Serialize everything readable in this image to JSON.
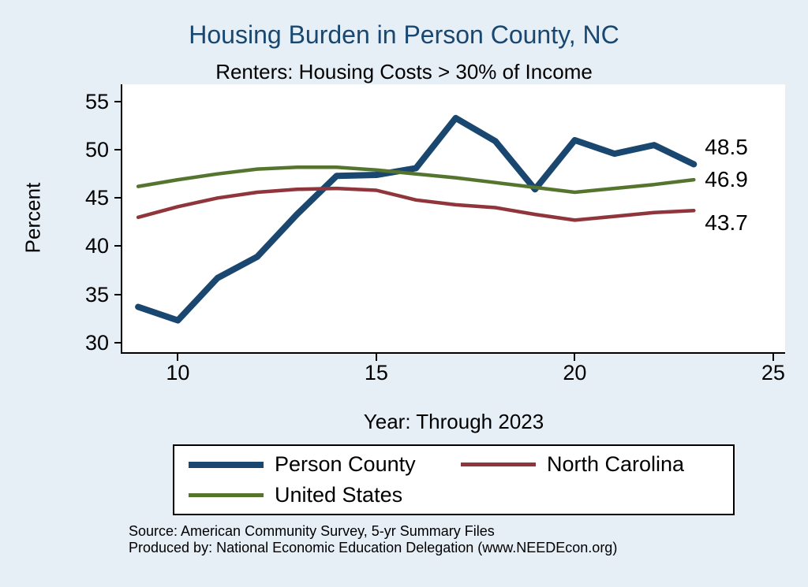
{
  "title": "Housing Burden in Person County, NC",
  "subtitle": "Renters: Housing Costs > 30% of Income",
  "axis": {
    "y_label": "Percent",
    "x_label": "Year: Through 2023"
  },
  "source": {
    "line1": "Source: American Community Survey, 5-yr Summary Files",
    "line2": "Produced by: National Economic Education Delegation (www.NEEDEcon.org)"
  },
  "colors": {
    "background": "#e6eef6",
    "title": "#1a476f"
  },
  "chart_data": {
    "type": "line",
    "title": "Housing Burden in Person County, NC",
    "subtitle": "Renters: Housing Costs > 30% of Income",
    "xlabel": "Year: Through 2023",
    "ylabel": "Percent",
    "x": [
      9,
      10,
      11,
      12,
      13,
      14,
      15,
      16,
      17,
      18,
      19,
      20,
      21,
      22,
      23
    ],
    "series": [
      {
        "name": "Person County",
        "color": "#1a476f",
        "width": 8,
        "end_label": "48.5",
        "values": [
          33.7,
          32.3,
          36.7,
          38.9,
          43.3,
          47.3,
          47.4,
          48.1,
          53.3,
          50.9,
          45.9,
          51.0,
          49.6,
          50.5,
          48.5
        ]
      },
      {
        "name": "North Carolina",
        "color": "#90353b",
        "width": 4.5,
        "end_label": "43.7",
        "values": [
          43.0,
          44.1,
          45.0,
          45.6,
          45.9,
          46.0,
          45.8,
          44.8,
          44.3,
          44.0,
          43.3,
          42.7,
          43.1,
          43.5,
          43.7
        ]
      },
      {
        "name": "United States",
        "color": "#55752f",
        "width": 4.5,
        "end_label": "46.9",
        "values": [
          46.2,
          46.9,
          47.5,
          48.0,
          48.2,
          48.2,
          47.9,
          47.5,
          47.1,
          46.6,
          46.1,
          45.6,
          46.0,
          46.4,
          46.9
        ]
      }
    ],
    "xticks": [
      10,
      15,
      20,
      25
    ],
    "yticks": [
      30,
      35,
      40,
      45,
      50,
      55
    ],
    "xlim": [
      8.6,
      25.3
    ],
    "ylim": [
      29,
      56.8
    ],
    "grid": false,
    "legend_position": "bottom"
  }
}
